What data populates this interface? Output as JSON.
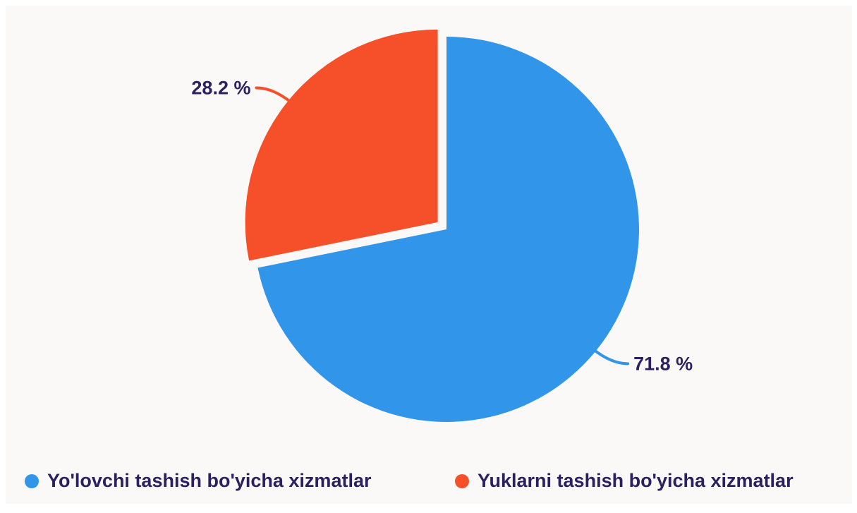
{
  "chart_data": {
    "type": "pie",
    "categories": [
      "Yo'lovchi tashish bo'yicha xizmatlar",
      "Yuklarni tashish bo'yicha xizmatlar"
    ],
    "values": [
      71.8,
      28.2
    ],
    "value_labels": [
      "71.8 %",
      "28.2 %"
    ],
    "colors": [
      "#3196ea",
      "#f5502a"
    ],
    "exploded": [
      false,
      true
    ],
    "legend": "bottom"
  }
}
